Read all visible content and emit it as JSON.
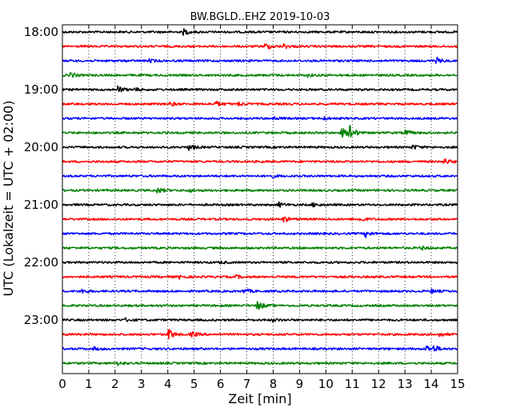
{
  "chart_data": {
    "type": "line",
    "title": "BW.BGLD..EHZ 2019-10-03",
    "xlabel": "Zeit  [min]",
    "ylabel": "UTC (Lokalzeit = UTC + 02:00)",
    "xlim": [
      0,
      15
    ],
    "xticks": [
      "0",
      "1",
      "2",
      "3",
      "4",
      "5",
      "6",
      "7",
      "8",
      "9",
      "10",
      "11",
      "12",
      "13",
      "14",
      "15"
    ],
    "grid": "vertical dotted",
    "row_interval_min": 15,
    "colors": [
      "#000000",
      "#ff0000",
      "#0000ff",
      "#008000"
    ],
    "ytick_labels": [
      {
        "row": 0,
        "label": "18:00"
      },
      {
        "row": 4,
        "label": "19:00"
      },
      {
        "row": 8,
        "label": "20:00"
      },
      {
        "row": 12,
        "label": "21:00"
      },
      {
        "row": 16,
        "label": "22:00"
      },
      {
        "row": 20,
        "label": "23:00"
      }
    ],
    "series": [
      {
        "start": "18:00",
        "events": [
          {
            "t": 4.6,
            "a": 0.6
          }
        ]
      },
      {
        "start": "18:15",
        "events": [
          {
            "t": 7.7,
            "a": 0.7
          },
          {
            "t": 8.4,
            "a": 0.5
          }
        ]
      },
      {
        "start": "18:30",
        "events": [
          {
            "t": 3.3,
            "a": 0.3
          },
          {
            "t": 14.2,
            "a": 0.6
          }
        ]
      },
      {
        "start": "18:45",
        "events": [
          {
            "t": 0.3,
            "a": 0.6
          },
          {
            "t": 9.3,
            "a": 0.3
          }
        ]
      },
      {
        "start": "19:00",
        "events": [
          {
            "t": 2.1,
            "a": 0.7
          },
          {
            "t": 2.7,
            "a": 0.4
          }
        ]
      },
      {
        "start": "19:15",
        "events": [
          {
            "t": 4.1,
            "a": 0.4
          },
          {
            "t": 5.8,
            "a": 0.6
          },
          {
            "t": 6.7,
            "a": 0.4
          }
        ]
      },
      {
        "start": "19:30",
        "events": [
          {
            "t": 8.0,
            "a": 0.3
          },
          {
            "t": 9.9,
            "a": 0.3
          }
        ]
      },
      {
        "start": "19:45",
        "events": [
          {
            "t": 10.6,
            "a": 1.0
          },
          {
            "t": 10.9,
            "a": 1.7
          },
          {
            "t": 13.0,
            "a": 0.6
          }
        ]
      },
      {
        "start": "20:00",
        "events": [
          {
            "t": 4.8,
            "a": 0.6
          },
          {
            "t": 13.3,
            "a": 0.5
          }
        ]
      },
      {
        "start": "20:15",
        "events": [
          {
            "t": 14.5,
            "a": 0.6
          }
        ]
      },
      {
        "start": "20:30",
        "events": [
          {
            "t": 7.9,
            "a": 0.3
          }
        ]
      },
      {
        "start": "20:45",
        "events": [
          {
            "t": 3.6,
            "a": 0.6
          },
          {
            "t": 4.8,
            "a": 0.3
          }
        ]
      },
      {
        "start": "21:00",
        "events": [
          {
            "t": 8.2,
            "a": 0.5
          },
          {
            "t": 9.5,
            "a": 0.4
          }
        ]
      },
      {
        "start": "21:15",
        "events": [
          {
            "t": 8.4,
            "a": 0.6
          },
          {
            "t": 11.3,
            "a": 0.5
          }
        ]
      },
      {
        "start": "21:30",
        "events": [
          {
            "t": 11.5,
            "a": 0.7
          }
        ]
      },
      {
        "start": "21:45",
        "events": [
          {
            "t": 13.6,
            "a": 0.4
          }
        ]
      },
      {
        "start": "22:00",
        "events": [
          {
            "t": 6.0,
            "a": 0.2
          }
        ]
      },
      {
        "start": "22:15",
        "events": [
          {
            "t": 4.4,
            "a": 0.4
          },
          {
            "t": 6.6,
            "a": 0.3
          }
        ]
      },
      {
        "start": "22:30",
        "events": [
          {
            "t": 0.7,
            "a": 0.5
          },
          {
            "t": 6.9,
            "a": 0.5
          },
          {
            "t": 14.0,
            "a": 0.4
          }
        ]
      },
      {
        "start": "22:45",
        "events": [
          {
            "t": 7.4,
            "a": 1.0
          }
        ]
      },
      {
        "start": "23:00",
        "events": [
          {
            "t": 2.4,
            "a": 0.3
          },
          {
            "t": 8.0,
            "a": 0.3
          }
        ]
      },
      {
        "start": "23:15",
        "events": [
          {
            "t": 4.0,
            "a": 1.3
          },
          {
            "t": 4.9,
            "a": 0.6
          },
          {
            "t": 14.3,
            "a": 0.5
          }
        ]
      },
      {
        "start": "23:30",
        "events": [
          {
            "t": 1.2,
            "a": 0.3
          },
          {
            "t": 13.8,
            "a": 0.7
          },
          {
            "t": 14.1,
            "a": 0.6
          }
        ]
      },
      {
        "start": "23:45",
        "events": [
          {
            "t": 2.1,
            "a": 0.4
          }
        ]
      }
    ]
  }
}
